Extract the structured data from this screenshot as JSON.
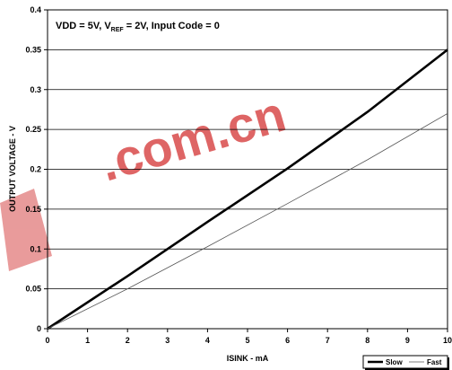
{
  "chart_data": {
    "type": "line",
    "annotation": {
      "part1": "VDD = 5V, V",
      "sub": "REF",
      "part2": " = 2V, Input Code = 0"
    },
    "xlabel": "ISINK  - mA",
    "ylabel": "OUTPUT VOLTAGE - V",
    "xlim": [
      0,
      10
    ],
    "ylim": [
      0,
      0.4
    ],
    "xticks": [
      "0",
      "1",
      "2",
      "3",
      "4",
      "5",
      "6",
      "7",
      "8",
      "9",
      "10"
    ],
    "yticks": [
      "0",
      "0.05",
      "0.1",
      "0.15",
      "0.2",
      "0.25",
      "0.3",
      "0.35",
      "0.4"
    ],
    "grid": "horizontal",
    "legend_position": "bottom-right",
    "x": [
      0,
      2,
      4,
      6,
      8,
      10
    ],
    "series": [
      {
        "name": "Slow",
        "values": [
          0,
          0.066,
          0.134,
          0.201,
          0.272,
          0.35
        ],
        "color": "#000000",
        "width": 2.6
      },
      {
        "name": "Fast",
        "values": [
          0,
          0.05,
          0.103,
          0.157,
          0.212,
          0.27
        ],
        "color": "#555555",
        "width": 0.8
      }
    ]
  },
  "watermark": {
    "text": ".com.cn",
    "color": "#d94b4b"
  }
}
